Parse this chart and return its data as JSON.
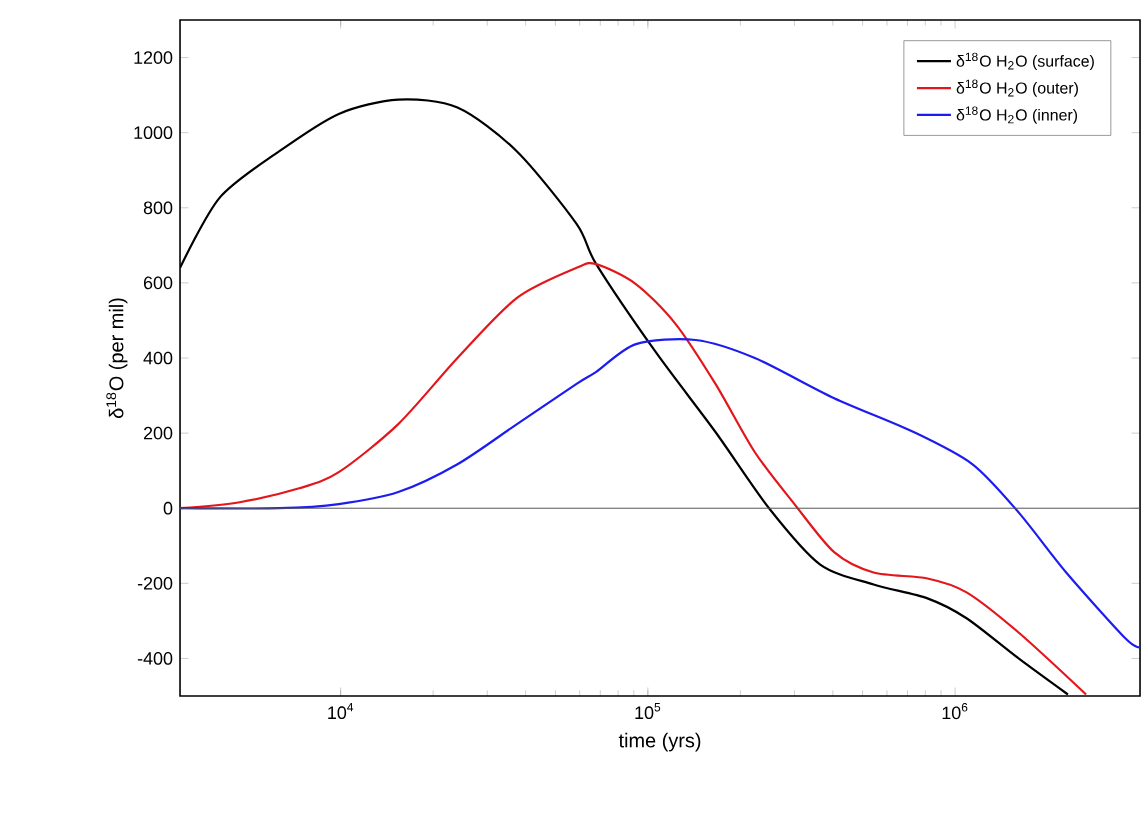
{
  "chart_data": {
    "type": "line",
    "xlabel": "time (yrs)",
    "ylabel": "δ$^{18}$O (per mil)",
    "log": "x",
    "xlim": [
      3000,
      4000000
    ],
    "ylim": [
      -500,
      1300
    ],
    "xticks": [
      {
        "value": 10000,
        "label": "10$^{4}$"
      },
      {
        "value": 100000,
        "label": "10$^{5}$"
      },
      {
        "value": 1000000,
        "label": "10$^{6}$"
      }
    ],
    "yticks": [
      -400,
      -200,
      0,
      200,
      400,
      600,
      800,
      1000,
      1200
    ],
    "legend": "top right",
    "line_style": "solid",
    "marker": "none",
    "grid": false,
    "ref_lines": [
      {
        "axis": "y",
        "value": 0,
        "color": "#555555"
      }
    ],
    "series": [
      {
        "name": "δ$^{18}$O H$_{2}$O (surface)",
        "color": "#000000",
        "x": [
          3000,
          4040,
          6300,
          9860,
          15400,
          24000,
          37500,
          58600,
          67900,
          106000,
          166000,
          248000,
          364000,
          543000,
          813000,
          1090000,
          1610000,
          2330000
        ],
        "values": [
          640,
          827,
          950,
          1050,
          1088,
          1067,
          950,
          757,
          650,
          416,
          203,
          0,
          -150,
          -203,
          -240,
          -293,
          -400,
          -496
        ]
      },
      {
        "name": "δ$^{18}$O H$_{2}$O (outer)",
        "color": "#e3161c",
        "x": [
          3000,
          4690,
          7330,
          9860,
          15400,
          24000,
          37500,
          58600,
          67900,
          91400,
          123000,
          166000,
          223000,
          300000,
          404000,
          543000,
          813000,
          1090000,
          1610000,
          2670000
        ],
        "values": [
          0,
          16,
          53,
          96,
          224,
          400,
          560,
          640,
          650,
          597,
          491,
          331,
          149,
          11,
          -117,
          -171,
          -187,
          -224,
          -331,
          -496
        ]
      },
      {
        "name": "δ$^{18}$O H$_{2}$O (inner)",
        "color": "#1c1cf0",
        "x": [
          3000,
          6300,
          9860,
          15400,
          24000,
          37500,
          58600,
          67900,
          91400,
          143000,
          223000,
          404000,
          733000,
          1140000,
          1610000,
          2300000,
          3590000,
          4000000
        ],
        "values": [
          0,
          0,
          11,
          43,
          117,
          224,
          331,
          363,
          437,
          448,
          400,
          293,
          203,
          117,
          -11,
          -171,
          -347,
          -370
        ]
      }
    ]
  }
}
